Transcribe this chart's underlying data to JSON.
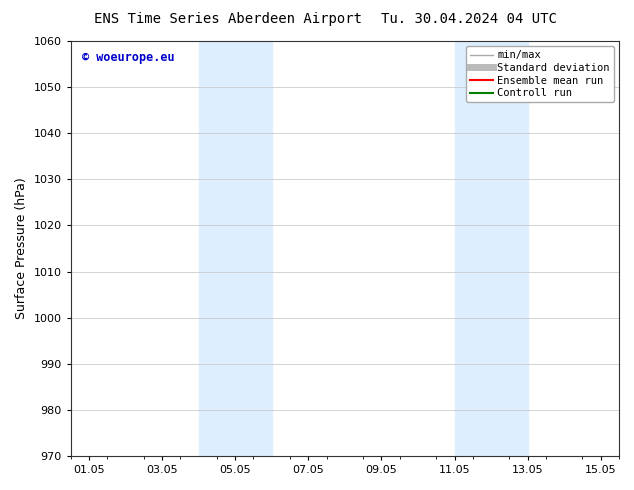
{
  "title_left": "ENS Time Series Aberdeen Airport",
  "title_right": "Tu. 30.04.2024 04 UTC",
  "ylabel": "Surface Pressure (hPa)",
  "ylim": [
    970,
    1060
  ],
  "yticks": [
    970,
    980,
    990,
    1000,
    1010,
    1020,
    1030,
    1040,
    1050,
    1060
  ],
  "xlim": [
    0,
    15
  ],
  "xtick_labels": [
    "01.05",
    "03.05",
    "05.05",
    "07.05",
    "09.05",
    "11.05",
    "13.05",
    "15.05"
  ],
  "xtick_positions": [
    0.5,
    2.5,
    4.5,
    6.5,
    8.5,
    10.5,
    12.5,
    14.5
  ],
  "shaded_regions": [
    {
      "x_start": 3.5,
      "x_end": 5.5,
      "color": "#ddeeff"
    },
    {
      "x_start": 10.5,
      "x_end": 12.5,
      "color": "#ddeeff"
    }
  ],
  "watermark": "© woeurope.eu",
  "watermark_color": "#0000cc",
  "legend_entries": [
    {
      "label": "min/max",
      "color": "#aaaaaa",
      "lw": 1
    },
    {
      "label": "Standard deviation",
      "color": "#bbbbbb",
      "lw": 5
    },
    {
      "label": "Ensemble mean run",
      "color": "#ff0000",
      "lw": 1.5
    },
    {
      "label": "Controll run",
      "color": "#008000",
      "lw": 1.5
    }
  ],
  "bg_color": "#ffffff",
  "grid_color": "#cccccc",
  "title_fontsize": 10,
  "tick_fontsize": 8,
  "legend_fontsize": 7.5,
  "ylabel_fontsize": 9
}
